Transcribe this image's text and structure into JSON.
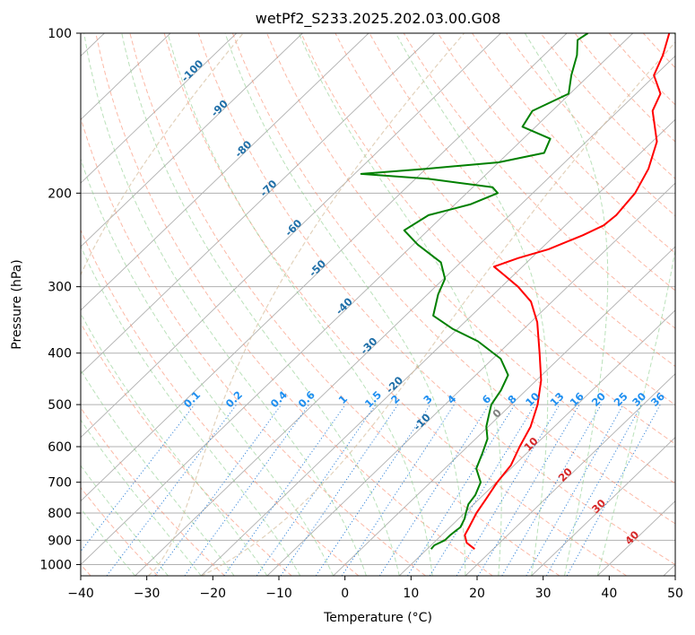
{
  "chart_data": {
    "type": "line",
    "subtype": "skew-t log-p sounding",
    "title": "wetPf2_S233.2025.202.03.00.G08",
    "xlabel": "Temperature (°C)",
    "ylabel": "Pressure (hPa)",
    "xlim": [
      -40,
      50
    ],
    "ylim": [
      1050,
      100
    ],
    "y_scale": "log",
    "grid": true,
    "x_ticks": [
      "−40",
      "−30",
      "−20",
      "−10",
      "0",
      "10",
      "20",
      "30",
      "40",
      "50"
    ],
    "y_ticks": [
      "100",
      "200",
      "300",
      "400",
      "500",
      "600",
      "700",
      "800",
      "900",
      "1000"
    ],
    "x_tick_values": [
      -40,
      -30,
      -20,
      -10,
      0,
      10,
      20,
      30,
      40,
      50
    ],
    "y_tick_values": [
      100,
      200,
      300,
      400,
      500,
      600,
      700,
      800,
      900,
      1000
    ],
    "series": [
      {
        "color": "#ff0000",
        "points": [
          {
            "p": 935,
            "t": 17.2
          },
          {
            "p": 910,
            "t": 15.0
          },
          {
            "p": 880,
            "t": 13.5
          },
          {
            "p": 850,
            "t": 12.9
          },
          {
            "p": 800,
            "t": 11.8
          },
          {
            "p": 750,
            "t": 11.0
          },
          {
            "p": 700,
            "t": 10.1
          },
          {
            "p": 650,
            "t": 9.5
          },
          {
            "p": 600,
            "t": 7.9
          },
          {
            "p": 550,
            "t": 6.4
          },
          {
            "p": 500,
            "t": 4.0
          },
          {
            "p": 450,
            "t": 0.7
          },
          {
            "p": 400,
            "t": -3.8
          },
          {
            "p": 350,
            "t": -9.0
          },
          {
            "p": 320,
            "t": -13.2
          },
          {
            "p": 300,
            "t": -17.5
          },
          {
            "p": 285,
            "t": -21.5
          },
          {
            "p": 275,
            "t": -24.3
          },
          {
            "p": 265,
            "t": -22.0
          },
          {
            "p": 255,
            "t": -18.8
          },
          {
            "p": 240,
            "t": -15.8
          },
          {
            "p": 230,
            "t": -14.2
          },
          {
            "p": 220,
            "t": -13.9
          },
          {
            "p": 200,
            "t": -14.5
          },
          {
            "p": 180,
            "t": -16.3
          },
          {
            "p": 160,
            "t": -19.3
          },
          {
            "p": 140,
            "t": -24.8
          },
          {
            "p": 130,
            "t": -26.3
          },
          {
            "p": 120,
            "t": -30.2
          },
          {
            "p": 110,
            "t": -32.0
          },
          {
            "p": 100,
            "t": -34.5
          }
        ]
      },
      {
        "color": "#008000",
        "points": [
          {
            "p": 935,
            "t": 10.6
          },
          {
            "p": 920,
            "t": 10.5
          },
          {
            "p": 900,
            "t": 11.3
          },
          {
            "p": 880,
            "t": 11.3
          },
          {
            "p": 850,
            "t": 11.6
          },
          {
            "p": 820,
            "t": 10.9
          },
          {
            "p": 800,
            "t": 10.2
          },
          {
            "p": 770,
            "t": 9.2
          },
          {
            "p": 740,
            "t": 8.8
          },
          {
            "p": 700,
            "t": 7.6
          },
          {
            "p": 660,
            "t": 4.8
          },
          {
            "p": 620,
            "t": 3.4
          },
          {
            "p": 580,
            "t": 1.8
          },
          {
            "p": 550,
            "t": -0.3
          },
          {
            "p": 520,
            "t": -1.9
          },
          {
            "p": 500,
            "t": -3.0
          },
          {
            "p": 470,
            "t": -3.8
          },
          {
            "p": 440,
            "t": -5.1
          },
          {
            "p": 410,
            "t": -8.8
          },
          {
            "p": 380,
            "t": -15.0
          },
          {
            "p": 360,
            "t": -20.8
          },
          {
            "p": 340,
            "t": -25.8
          },
          {
            "p": 310,
            "t": -28.4
          },
          {
            "p": 290,
            "t": -29.8
          },
          {
            "p": 270,
            "t": -33.0
          },
          {
            "p": 250,
            "t": -39.3
          },
          {
            "p": 235,
            "t": -43.6
          },
          {
            "p": 220,
            "t": -42.3
          },
          {
            "p": 210,
            "t": -37.7
          },
          {
            "p": 200,
            "t": -35.3
          },
          {
            "p": 195,
            "t": -37.0
          },
          {
            "p": 188,
            "t": -48.0
          },
          {
            "p": 184,
            "t": -59.0
          },
          {
            "p": 180,
            "t": -50.0
          },
          {
            "p": 175,
            "t": -40.0
          },
          {
            "p": 168,
            "t": -34.6
          },
          {
            "p": 158,
            "t": -35.9
          },
          {
            "p": 150,
            "t": -42.0
          },
          {
            "p": 140,
            "t": -43.0
          },
          {
            "p": 130,
            "t": -40.2
          },
          {
            "p": 120,
            "t": -42.7
          },
          {
            "p": 110,
            "t": -45.0
          },
          {
            "p": 103,
            "t": -47.3
          },
          {
            "p": 100,
            "t": -46.8
          }
        ]
      }
    ],
    "reference_lines": {
      "isotherms_color": "#b0b0b0",
      "dry_adiabat_color": "#fa8b6c",
      "moist_adiabat_color": "#8ccd8c",
      "mixing_ratio_color": "#1f77d4",
      "lcl_curve_color": "#d6bfa0"
    },
    "isotherm_labels": [
      {
        "text": "-100",
        "t": -100,
        "p": 119
      },
      {
        "text": "-90",
        "t": -90,
        "p": 140
      },
      {
        "text": "-80",
        "t": -80,
        "p": 167
      },
      {
        "text": "-70",
        "t": -70,
        "p": 198
      },
      {
        "text": "-60",
        "t": -60,
        "p": 235
      },
      {
        "text": "-50",
        "t": -50,
        "p": 280
      },
      {
        "text": "-40",
        "t": -40,
        "p": 330
      },
      {
        "text": "-30",
        "t": -30,
        "p": 392
      },
      {
        "text": "-20",
        "t": -20,
        "p": 464
      },
      {
        "text": "-10",
        "t": -10,
        "p": 545
      }
    ],
    "isotherm_label_color": "#1f6fa8",
    "mixing_ratio_labels": [
      "0.1",
      "0.2",
      "0.4",
      "0.6",
      "1",
      "1.5",
      "2",
      "3",
      "4",
      "6",
      "8",
      "10",
      "13",
      "16",
      "20",
      "25",
      "30",
      "36"
    ],
    "mixing_ratio_values": [
      0.1,
      0.2,
      0.4,
      0.6,
      1,
      1.5,
      2,
      3,
      4,
      6,
      8,
      10,
      13,
      16,
      20,
      25,
      30,
      36
    ],
    "mixing_ratio_label_color": "#1f8ff0",
    "upper_isotherm_labels": [
      {
        "text": "0",
        "t": 0,
        "p": 525,
        "color": "#808080"
      },
      {
        "text": "10",
        "t": 10,
        "p": 600,
        "color": "#d62728"
      },
      {
        "text": "20",
        "t": 20,
        "p": 685,
        "color": "#d62728"
      },
      {
        "text": "30",
        "t": 30,
        "p": 785,
        "color": "#d62728"
      },
      {
        "text": "40",
        "t": 40,
        "p": 900,
        "color": "#d62728"
      }
    ]
  }
}
